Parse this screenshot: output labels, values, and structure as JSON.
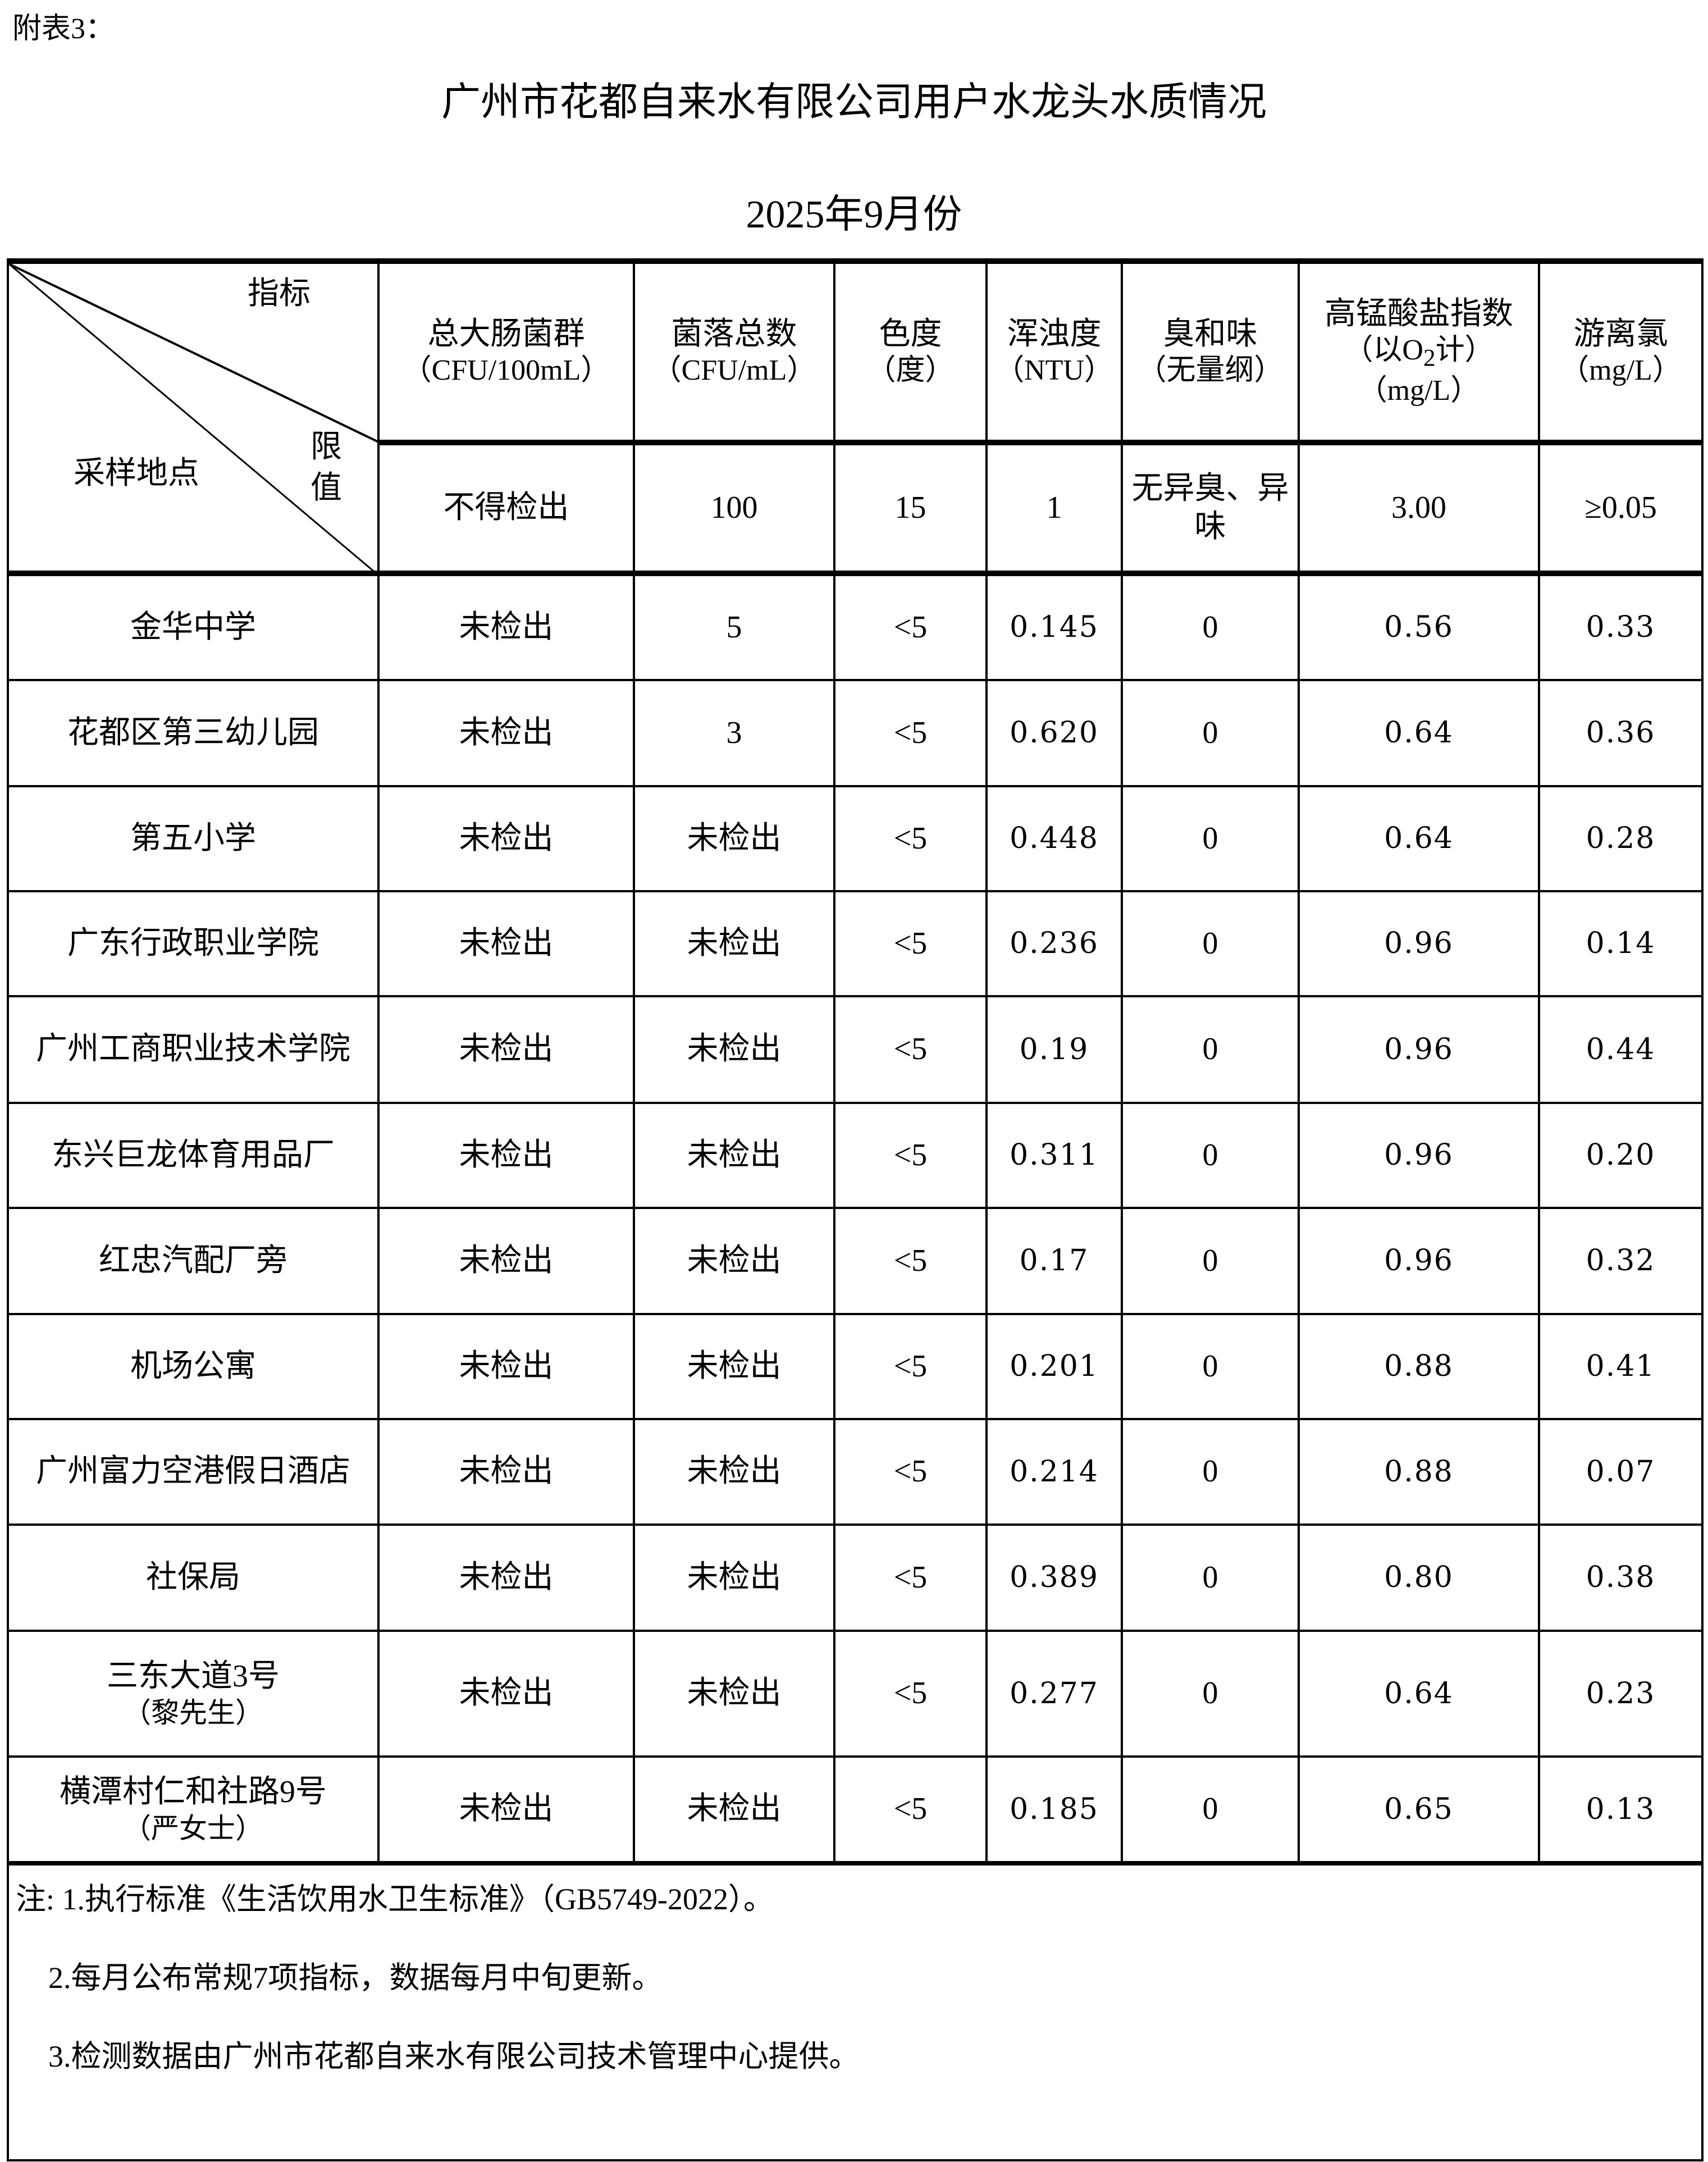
{
  "appendix_label": "附表3：",
  "title": "广州市花都自来水有限公司用户水龙头水质情况",
  "subtitle": "2025年9月份",
  "header": {
    "corner_index": "指标",
    "corner_site": "采样地点",
    "corner_limit": "限值",
    "columns": [
      {
        "name": "总大肠菌群",
        "unit": "（CFU/100mL）"
      },
      {
        "name": "菌落总数",
        "unit": "（CFU/mL）"
      },
      {
        "name": "色度",
        "unit": "（度）"
      },
      {
        "name": "浑浊度",
        "unit": "（NTU）"
      },
      {
        "name": "臭和味",
        "unit": "（无量纲）"
      },
      {
        "name": "高锰酸盐指数",
        "unit_pre": "（以O",
        "unit_sub": "2",
        "unit_post": "计）",
        "unit2": "（mg/L）"
      },
      {
        "name": "游离氯",
        "unit": "（mg/L）"
      }
    ]
  },
  "limits": [
    "不得检出",
    "100",
    "15",
    "1",
    "无异臭、异味",
    "3.00",
    "≥0.05"
  ],
  "rows": [
    {
      "site": "金华中学",
      "site2": "",
      "values": [
        "未检出",
        "5",
        "<5",
        "0.145",
        "0",
        "0.56",
        "0.33"
      ]
    },
    {
      "site": "花都区第三幼儿园",
      "site2": "",
      "values": [
        "未检出",
        "3",
        "<5",
        "0.620",
        "0",
        "0.64",
        "0.36"
      ]
    },
    {
      "site": "第五小学",
      "site2": "",
      "values": [
        "未检出",
        "未检出",
        "<5",
        "0.448",
        "0",
        "0.64",
        "0.28"
      ]
    },
    {
      "site": "广东行政职业学院",
      "site2": "",
      "values": [
        "未检出",
        "未检出",
        "<5",
        "0.236",
        "0",
        "0.96",
        "0.14"
      ]
    },
    {
      "site": "广州工商职业技术学院",
      "site2": "",
      "values": [
        "未检出",
        "未检出",
        "<5",
        "0.19",
        "0",
        "0.96",
        "0.44"
      ]
    },
    {
      "site": "东兴巨龙体育用品厂",
      "site2": "",
      "values": [
        "未检出",
        "未检出",
        "<5",
        "0.311",
        "0",
        "0.96",
        "0.20"
      ]
    },
    {
      "site": "红忠汽配厂旁",
      "site2": "",
      "values": [
        "未检出",
        "未检出",
        "<5",
        "0.17",
        "0",
        "0.96",
        "0.32"
      ]
    },
    {
      "site": "机场公寓",
      "site2": "",
      "values": [
        "未检出",
        "未检出",
        "<5",
        "0.201",
        "0",
        "0.88",
        "0.41"
      ]
    },
    {
      "site": "广州富力空港假日酒店",
      "site2": "",
      "values": [
        "未检出",
        "未检出",
        "<5",
        "0.214",
        "0",
        "0.88",
        "0.07"
      ]
    },
    {
      "site": "社保局",
      "site2": "",
      "values": [
        "未检出",
        "未检出",
        "<5",
        "0.389",
        "0",
        "0.80",
        "0.38"
      ]
    },
    {
      "site": "三东大道3号",
      "site2": "（黎先生）",
      "values": [
        "未检出",
        "未检出",
        "<5",
        "0.277",
        "0",
        "0.64",
        "0.23"
      ]
    },
    {
      "site": "横潭村仁和社路9号",
      "site2": "（严女士）",
      "values": [
        "未检出",
        "未检出",
        "<5",
        "0.185",
        "0",
        "0.65",
        "0.13"
      ]
    }
  ],
  "notes": [
    "注: 1.执行标准《生活饮用水卫生标准》（GB5749-2022）。",
    "2.每月公布常规7项指标，数据每月中旬更新。",
    "3.检测数据由广州市花都自来水有限公司技术管理中心提供。"
  ]
}
